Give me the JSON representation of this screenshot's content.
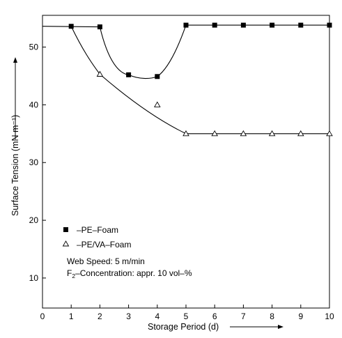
{
  "chart_data": {
    "type": "scatter",
    "xlabel": "Storage Period (d)",
    "ylabel": "Surface Tension (mN m⁻¹)",
    "xlim": [
      0,
      10
    ],
    "ylim": [
      4.8,
      55.5
    ],
    "x_ticks": [
      "0",
      "1",
      "2",
      "3",
      "4",
      "5",
      "6",
      "7",
      "8",
      "9",
      "10"
    ],
    "y_ticks": [
      "10",
      "20",
      "30",
      "40",
      "50"
    ],
    "grid": false,
    "legend_position": "bottom-left",
    "series": [
      {
        "name": "–PE–Foam",
        "marker": "filled-square",
        "x": [
          1,
          2,
          3,
          4,
          5,
          6,
          7,
          8,
          9,
          10
        ],
        "y": [
          53.6,
          53.5,
          45.2,
          44.9,
          53.8,
          53.8,
          53.8,
          53.8,
          53.8,
          53.8
        ]
      },
      {
        "name": "–PE/VA–Foam",
        "marker": "open-triangle",
        "x": [
          2,
          4,
          5,
          6,
          7,
          8,
          9,
          10
        ],
        "y": [
          45.3,
          40.0,
          35.0,
          35.0,
          35.0,
          35.0,
          35.0,
          35.0
        ]
      }
    ],
    "annotations": {
      "web_speed": "Web Speed: 5 m/min",
      "f2_prefix": "F",
      "f2_sub": "2",
      "f2_rest": "–Concentration: appr. 10 vol–%"
    }
  }
}
